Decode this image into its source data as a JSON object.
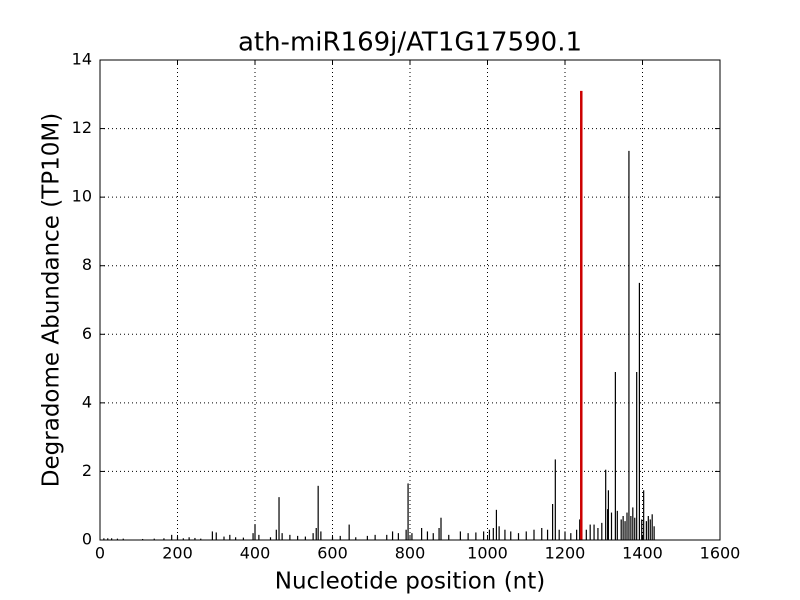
{
  "chart_data": {
    "type": "stem",
    "title": "ath-miR169j/AT1G17590.1",
    "xlabel": "Nucleotide position (nt)",
    "ylabel": "Degradome Abundance (TP10M)",
    "xlim": [
      0,
      1600
    ],
    "xticks": [
      0,
      200,
      400,
      600,
      800,
      1000,
      1200,
      1400,
      1600
    ],
    "ylim": [
      0,
      14
    ],
    "yticks": [
      0,
      2,
      4,
      6,
      8,
      10,
      12,
      14
    ],
    "grid": true,
    "series": [
      {
        "color": "#000000",
        "x": [
          10,
          20,
          30,
          45,
          60,
          110,
          140,
          165,
          185,
          200,
          215,
          230,
          245,
          260,
          290,
          300,
          320,
          335,
          350,
          370,
          395,
          400,
          410,
          440,
          455,
          462,
          470,
          490,
          510,
          530,
          550,
          558,
          563,
          570,
          600,
          620,
          643,
          660,
          690,
          710,
          740,
          755,
          770,
          790,
          795,
          805,
          830,
          845,
          860,
          875,
          880,
          900,
          930,
          950,
          970,
          990,
          1005,
          1015,
          1023,
          1030,
          1045,
          1060,
          1080,
          1100,
          1120,
          1140,
          1155,
          1168,
          1175,
          1185,
          1200,
          1215,
          1230,
          1238,
          1255,
          1265,
          1275,
          1285,
          1295,
          1305,
          1310,
          1312,
          1320,
          1330,
          1335,
          1345,
          1350,
          1355,
          1360,
          1365,
          1370,
          1375,
          1380,
          1385,
          1392,
          1398,
          1403,
          1410,
          1415,
          1420,
          1425,
          1430
        ],
        "values": [
          0.05,
          0.05,
          0.05,
          0.04,
          0.04,
          0.03,
          0.04,
          0.05,
          0.15,
          0.1,
          0.05,
          0.08,
          0.06,
          0.04,
          0.25,
          0.22,
          0.1,
          0.15,
          0.08,
          0.07,
          0.2,
          0.45,
          0.15,
          0.08,
          0.3,
          1.25,
          0.2,
          0.15,
          0.12,
          0.1,
          0.2,
          0.35,
          1.58,
          0.25,
          0.1,
          0.12,
          0.45,
          0.08,
          0.12,
          0.15,
          0.15,
          0.25,
          0.2,
          0.3,
          1.65,
          0.2,
          0.35,
          0.25,
          0.2,
          0.35,
          0.65,
          0.15,
          0.25,
          0.2,
          0.22,
          0.25,
          0.3,
          0.35,
          0.88,
          0.4,
          0.3,
          0.25,
          0.2,
          0.25,
          0.3,
          0.35,
          0.3,
          1.05,
          2.35,
          0.3,
          0.25,
          0.2,
          0.3,
          0.6,
          0.3,
          0.45,
          0.45,
          0.35,
          0.5,
          2.05,
          0.9,
          1.45,
          0.8,
          4.9,
          0.85,
          0.6,
          0.7,
          0.55,
          0.8,
          11.35,
          0.7,
          0.95,
          0.65,
          4.9,
          7.5,
          0.6,
          1.45,
          0.55,
          0.7,
          0.6,
          0.75,
          0.4
        ]
      },
      {
        "color": "#cc0000",
        "x": [
          1242
        ],
        "values": [
          13.1
        ]
      }
    ]
  }
}
